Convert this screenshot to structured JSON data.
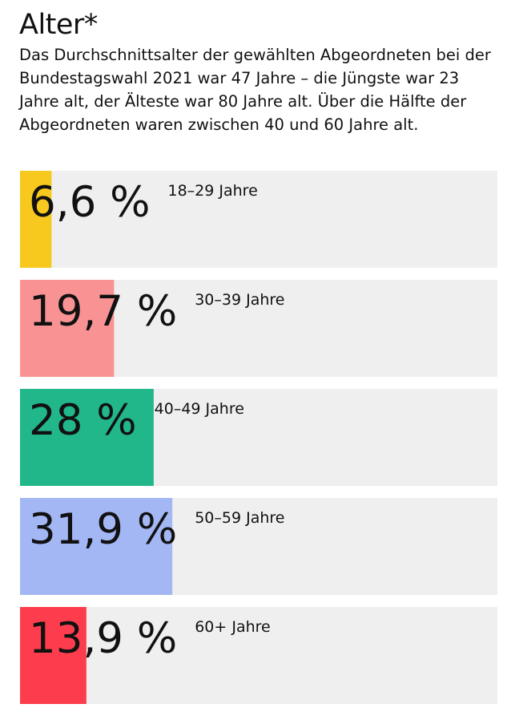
{
  "chart_data": {
    "type": "bar",
    "title": "Alter*",
    "subtitle": "Das Durchschnittsalter der gewählten Abgeordneten bei der Bundestagswahl 2021 war 47 Jahre – die Jüngste war 23 Jahre alt, der Älteste war 80 Jahre alt. Über die Hälfte der Abgeordneten waren zwischen 40 und 60 Jahre alt.",
    "orientation": "horizontal",
    "xlim": [
      0,
      100
    ],
    "categories": [
      "18–29 Jahre",
      "30–39 Jahre",
      "40–49 Jahre",
      "50–59 Jahre",
      "60+ Jahre"
    ],
    "values": [
      6.6,
      19.7,
      28,
      31.9,
      13.9
    ],
    "value_labels": [
      "6,6 %",
      "19,7 %",
      "28 %",
      "31,9 %",
      "13,9 %"
    ],
    "colors": [
      "#f7c81e",
      "#f99393",
      "#22b68b",
      "#a4b7f5",
      "#fd3d4d"
    ],
    "track_color": "#efefef"
  }
}
